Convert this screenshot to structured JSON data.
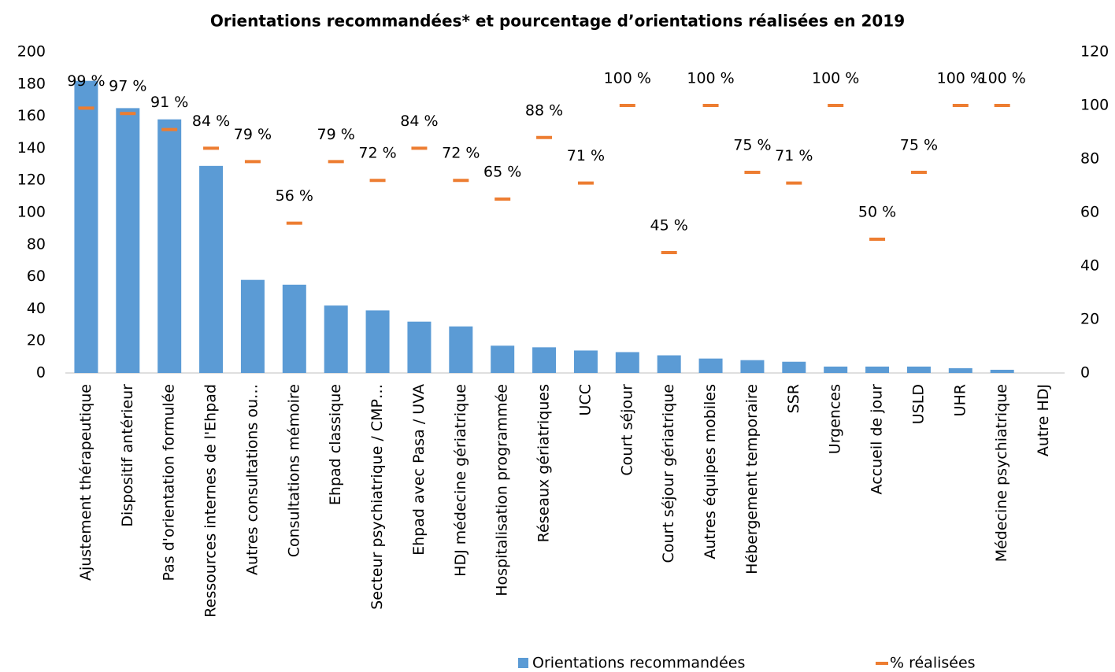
{
  "chart_data": {
    "type": "bar",
    "title": "Orientations recommandées* et pourcentage d’orientations réalisées en 2019",
    "categories": [
      "Ajustement thérapeutique",
      "Dispositif antérieur",
      "Pas d'orientation formulée",
      "Ressources internes de l'Ehpad",
      "Autres consultations ou…",
      "Consultations mémoire",
      "Ehpad classique",
      "Secteur psychiatrique / CMP…",
      "Ehpad avec Pasa / UVA",
      "HDJ médecine gériatrique",
      "Hospitalisation programmée",
      "Réseaux gériatriques",
      "UCC",
      "Court séjour",
      "Court séjour gériatrique",
      "Autres équipes mobiles",
      "Hébergement temporaire",
      "SSR",
      "Urgences",
      "Accueil de jour",
      "USLD",
      "UHR",
      "Médecine psychiatrique",
      "Autre HDJ"
    ],
    "series": [
      {
        "name": "Orientations recommandées",
        "type": "bar",
        "color": "#5b9bd5",
        "values": [
          182,
          165,
          158,
          129,
          58,
          55,
          42,
          39,
          32,
          29,
          17,
          16,
          14,
          13,
          11,
          9,
          8,
          7,
          4,
          4,
          4,
          3,
          2,
          0
        ]
      },
      {
        "name": "% réalisées",
        "type": "dash",
        "axis": "y2",
        "color": "#ed7d31",
        "values": [
          99,
          97,
          91,
          84,
          79,
          56,
          79,
          72,
          84,
          72,
          65,
          88,
          71,
          100,
          45,
          100,
          75,
          71,
          100,
          50,
          75,
          100,
          100,
          null
        ],
        "value_labels": [
          "99 %",
          "97 %",
          "91 %",
          "84 %",
          "79 %",
          "56 %",
          "79 %",
          "72 %",
          "84 %",
          "72 %",
          "65 %",
          "88 %",
          "71 %",
          "100 %",
          "45 %",
          "100 %",
          "75 %",
          "71 %",
          "100 %",
          "50 %",
          "75 %",
          "100 %",
          "100 %",
          null
        ]
      }
    ],
    "ylim": [
      0,
      200
    ],
    "yticks": [
      0,
      20,
      40,
      60,
      80,
      100,
      120,
      140,
      160,
      180,
      200
    ],
    "y2lim": [
      0,
      120
    ],
    "y2ticks": [
      0,
      20,
      40,
      60,
      80,
      100,
      120
    ],
    "legend": "bottom"
  }
}
